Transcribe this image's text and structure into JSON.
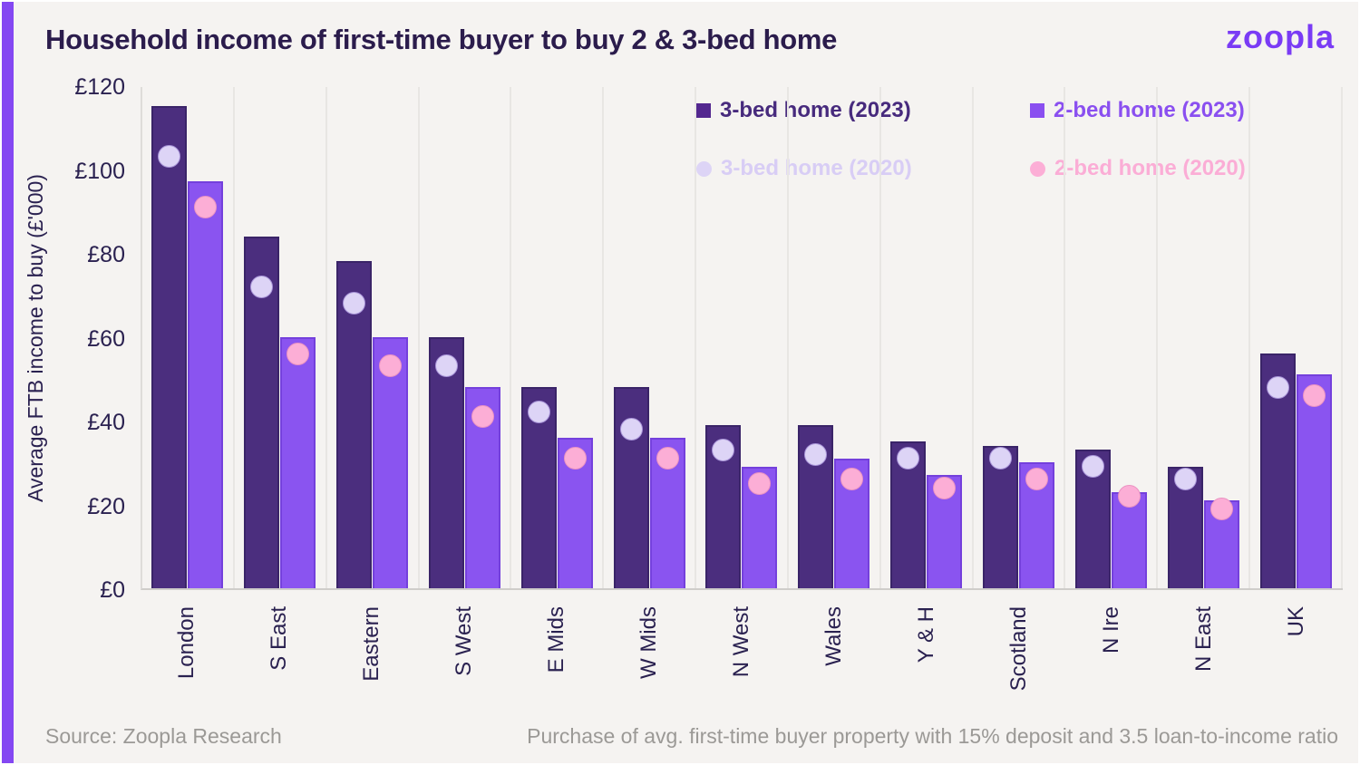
{
  "header": {
    "title": "Household income of first-time buyer to buy 2 & 3-bed home",
    "logo": "zoopla"
  },
  "legend": [
    {
      "label": "3-bed home (2023)",
      "marker": "square",
      "marker_color": "#53278f",
      "text_color": "#472a7d"
    },
    {
      "label": "2-bed home (2023)",
      "marker": "square",
      "marker_color": "#8a4ff0",
      "text_color": "#8a4ff0"
    },
    {
      "label": "3-bed home (2020)",
      "marker": "circle",
      "marker_color": "#ddd4f6",
      "text_color": "#d8cdf5"
    },
    {
      "label": "2-bed home (2020)",
      "marker": "circle",
      "marker_color": "#fcaed6",
      "text_color": "#fbadd6"
    }
  ],
  "chart_data": {
    "type": "bar",
    "title": "Household income of first-time buyer to buy 2 & 3-bed home",
    "xlabel": "",
    "ylabel": "Average FTB income to buy (£'000)",
    "ylim": [
      0,
      120
    ],
    "yticks": [
      "£120",
      "£100",
      "£80",
      "£60",
      "£40",
      "£20",
      "£0"
    ],
    "ytick_values": [
      120,
      100,
      80,
      60,
      40,
      20,
      0
    ],
    "grid": "vertical-category-separators-only",
    "legend_position": "top-right, 2x2",
    "categories": [
      "London",
      "S East",
      "Eastern",
      "S West",
      "E Mids",
      "W Mids",
      "N West",
      "Wales",
      "Y & H",
      "Scotland",
      "N Ire",
      "N East",
      "UK"
    ],
    "series": [
      {
        "name": "3-bed home (2023)",
        "type": "bar",
        "color": "#4b2e7e",
        "values": [
          115,
          84,
          78,
          60,
          48,
          48,
          39,
          39,
          35,
          34,
          33,
          29,
          56
        ]
      },
      {
        "name": "2-bed home (2023)",
        "type": "bar",
        "color": "#8a54f0",
        "values": [
          97,
          60,
          60,
          48,
          36,
          36,
          29,
          31,
          27,
          30,
          23,
          21,
          51
        ]
      },
      {
        "name": "3-bed home (2020)",
        "type": "point",
        "color": "#ddd4f6",
        "values": [
          103,
          72,
          68,
          53,
          42,
          38,
          33,
          32,
          31,
          31,
          29,
          26,
          48
        ]
      },
      {
        "name": "2-bed home (2020)",
        "type": "point",
        "color": "#fcaed6",
        "values": [
          91,
          56,
          53,
          41,
          31,
          31,
          25,
          26,
          24,
          26,
          22,
          19,
          46
        ]
      }
    ]
  },
  "footer": {
    "source": "Source: Zoopla Research",
    "note": "Purchase of avg. first-time buyer property with 15% deposit and 3.5 loan-to-income ratio"
  },
  "colors": {
    "background": "#f5f3f1",
    "accent_stripe": "#8448f2",
    "logo": "#7a3bf5",
    "title_text": "#2b1c4c",
    "axis_text": "#2a2150",
    "bar_3bed_2023": "#4b2e7e",
    "bar_2bed_2023": "#8a54f0",
    "dot_3bed_2020": "#ddd4f6",
    "dot_2bed_2020": "#fcaed6",
    "gridline": "#e8e6e3",
    "footer_text": "#9b9996"
  }
}
